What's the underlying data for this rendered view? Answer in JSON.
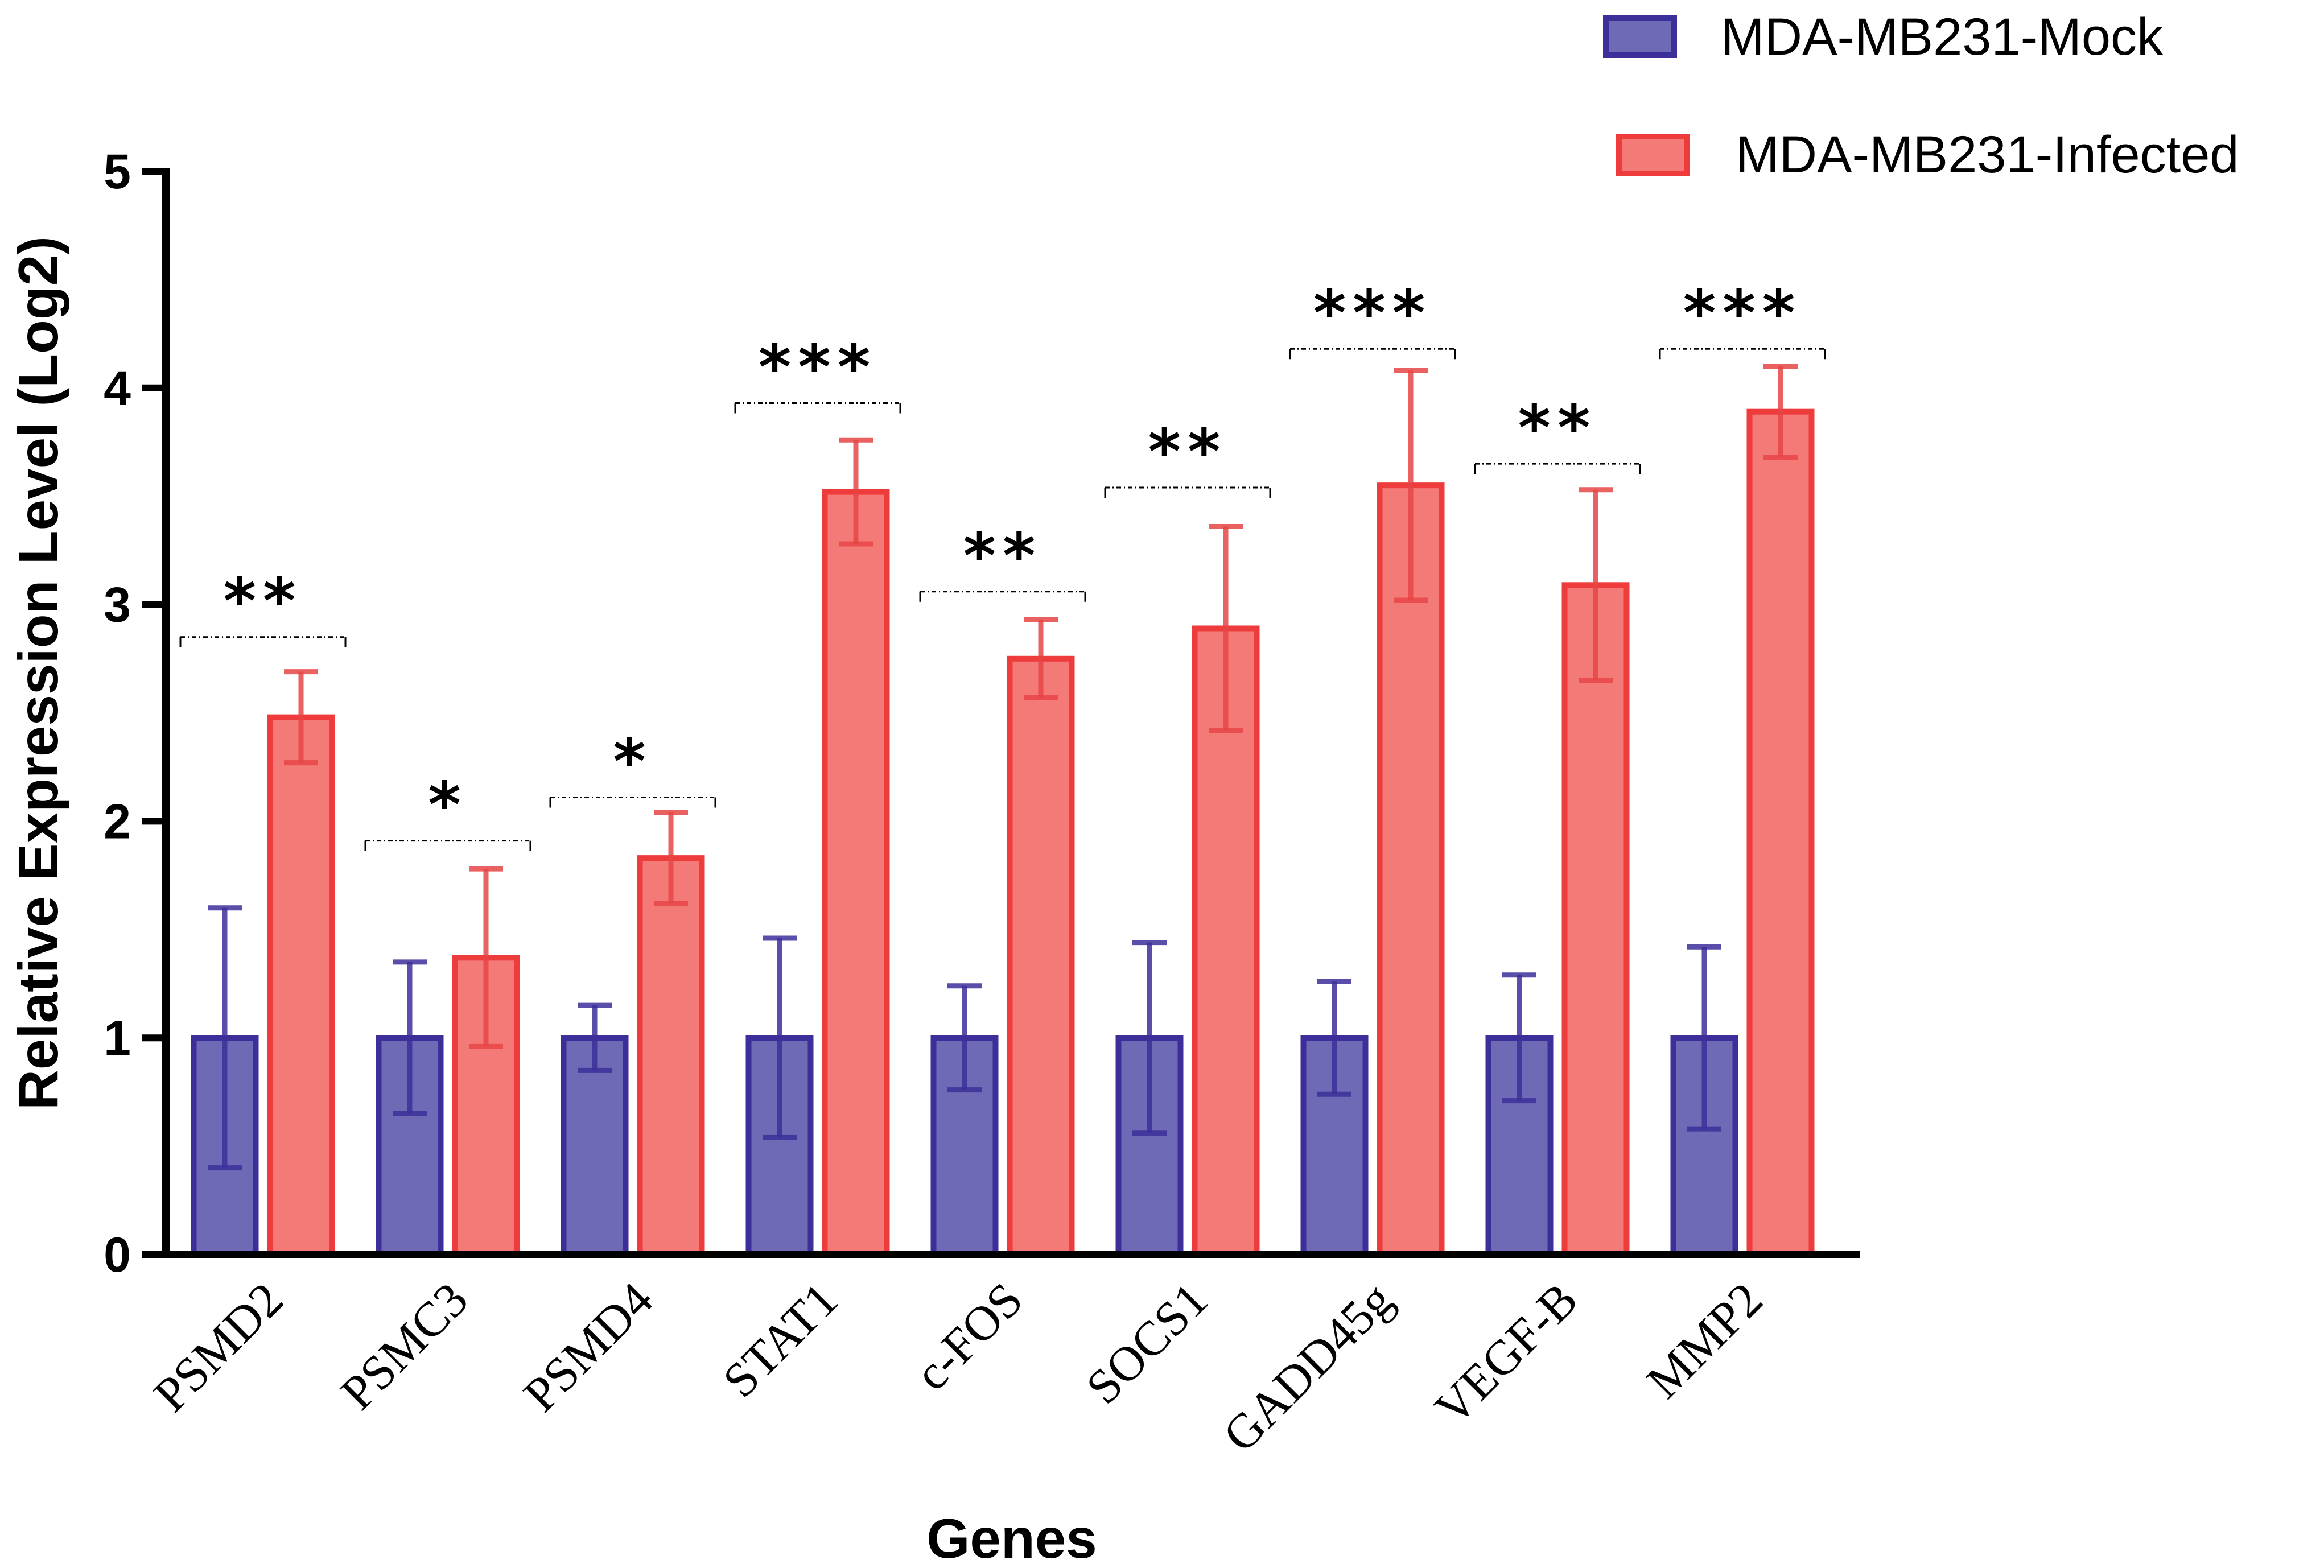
{
  "chart_data": {
    "type": "bar",
    "title": "",
    "xlabel": "Genes",
    "ylabel": "Relative Expression Level (Log2)",
    "ylim": [
      0,
      5
    ],
    "yticks": [
      "0",
      "1",
      "2",
      "3",
      "4",
      "5"
    ],
    "legend_position": "top-right",
    "grid": false,
    "categories": [
      "PSMD2",
      "PSMC3",
      "PSMD4",
      "STAT1",
      "c-FOS",
      "SOCS1",
      "GADD45g",
      "VEGF-B",
      "MMP2"
    ],
    "series": [
      {
        "name": "MDA-MB231-Mock",
        "color": "#6f6ab5",
        "edge_color": "#3c2f9a",
        "values": [
          1.0,
          1.0,
          1.0,
          1.0,
          1.0,
          1.0,
          1.0,
          1.0,
          1.0
        ],
        "errors": [
          0.6,
          0.35,
          0.15,
          0.46,
          0.24,
          0.44,
          0.26,
          0.29,
          0.42
        ]
      },
      {
        "name": "MDA-MB231-Infected",
        "color": "#f47a78",
        "edge_color": "#ee3b3b",
        "values": [
          2.48,
          1.37,
          1.83,
          3.52,
          2.75,
          2.89,
          3.55,
          3.09,
          3.89
        ],
        "errors": [
          0.21,
          0.41,
          0.21,
          0.24,
          0.18,
          0.47,
          0.53,
          0.44,
          0.21
        ]
      }
    ],
    "significance": [
      "**",
      "*",
      "*",
      "***",
      "**",
      "**",
      "***",
      "**",
      "***"
    ],
    "significance_bracket_y": [
      2.85,
      1.91,
      2.11,
      3.93,
      3.06,
      3.54,
      4.18,
      3.65,
      4.18
    ]
  }
}
